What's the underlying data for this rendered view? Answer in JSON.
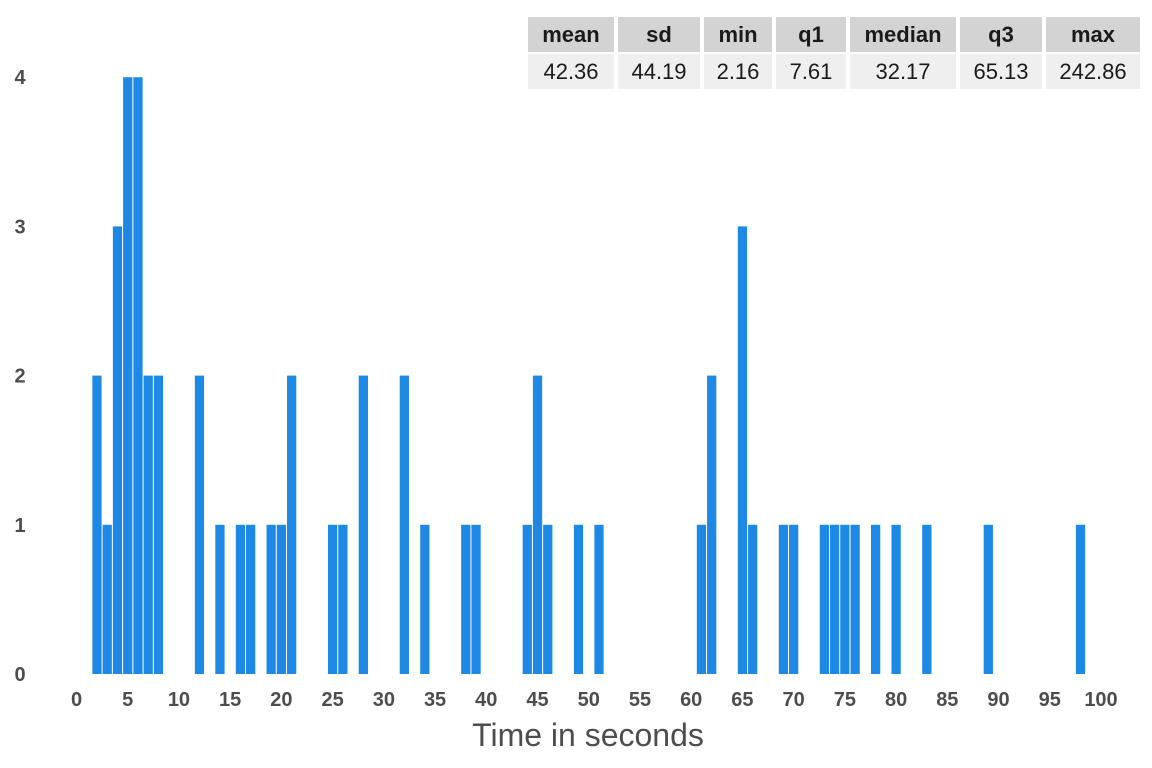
{
  "chart_data": {
    "type": "bar",
    "xlabel": "Time in seconds",
    "ylabel": "",
    "xlim": [
      0,
      100
    ],
    "ylim": [
      0,
      4
    ],
    "xticks": [
      0,
      5,
      10,
      15,
      20,
      25,
      30,
      35,
      40,
      45,
      50,
      55,
      60,
      65,
      70,
      75,
      80,
      85,
      90,
      95,
      100
    ],
    "yticks": [
      0,
      1,
      2,
      3,
      4
    ],
    "bin_width": 1,
    "color": "#1E88E5",
    "bins": [
      {
        "x": 2,
        "count": 2
      },
      {
        "x": 3,
        "count": 1
      },
      {
        "x": 4,
        "count": 3
      },
      {
        "x": 5,
        "count": 4
      },
      {
        "x": 6,
        "count": 4
      },
      {
        "x": 7,
        "count": 2
      },
      {
        "x": 8,
        "count": 2
      },
      {
        "x": 12,
        "count": 2
      },
      {
        "x": 14,
        "count": 1
      },
      {
        "x": 16,
        "count": 1
      },
      {
        "x": 17,
        "count": 1
      },
      {
        "x": 19,
        "count": 1
      },
      {
        "x": 20,
        "count": 1
      },
      {
        "x": 21,
        "count": 2
      },
      {
        "x": 25,
        "count": 1
      },
      {
        "x": 26,
        "count": 1
      },
      {
        "x": 28,
        "count": 2
      },
      {
        "x": 32,
        "count": 2
      },
      {
        "x": 34,
        "count": 1
      },
      {
        "x": 38,
        "count": 1
      },
      {
        "x": 39,
        "count": 1
      },
      {
        "x": 44,
        "count": 1
      },
      {
        "x": 45,
        "count": 2
      },
      {
        "x": 46,
        "count": 1
      },
      {
        "x": 49,
        "count": 1
      },
      {
        "x": 51,
        "count": 1
      },
      {
        "x": 61,
        "count": 1
      },
      {
        "x": 62,
        "count": 2
      },
      {
        "x": 65,
        "count": 3
      },
      {
        "x": 66,
        "count": 1
      },
      {
        "x": 69,
        "count": 1
      },
      {
        "x": 70,
        "count": 1
      },
      {
        "x": 73,
        "count": 1
      },
      {
        "x": 74,
        "count": 1
      },
      {
        "x": 75,
        "count": 1
      },
      {
        "x": 76,
        "count": 1
      },
      {
        "x": 78,
        "count": 1
      },
      {
        "x": 80,
        "count": 1
      },
      {
        "x": 83,
        "count": 1
      },
      {
        "x": 89,
        "count": 1
      },
      {
        "x": 98,
        "count": 1
      }
    ],
    "summary_table": {
      "headers": [
        "mean",
        "sd",
        "min",
        "q1",
        "median",
        "q3",
        "max"
      ],
      "values": [
        "42.36",
        "44.19",
        "2.16",
        "7.61",
        "32.17",
        "65.13",
        "242.86"
      ]
    }
  }
}
